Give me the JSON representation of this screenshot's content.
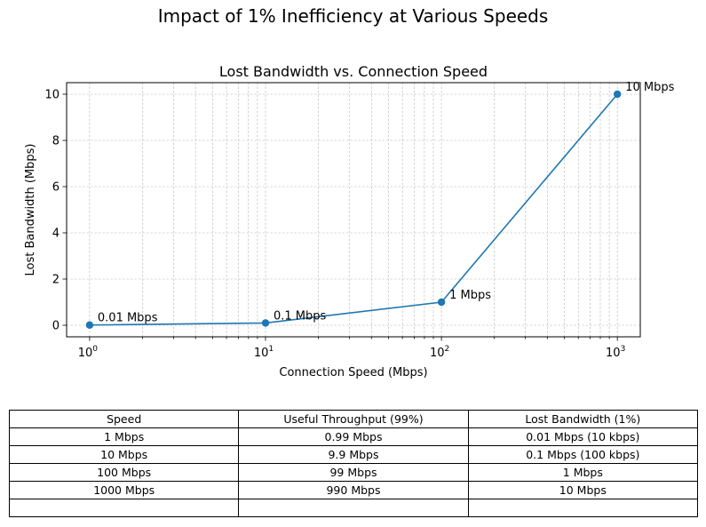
{
  "figure": {
    "suptitle": "Impact of 1% Inefficiency at Various Speeds"
  },
  "chart_data": {
    "type": "line",
    "title": "Lost Bandwidth vs. Connection Speed",
    "xlabel": "Connection Speed (Mbps)",
    "ylabel": "Lost Bandwidth (Mbps)",
    "xscale": "log",
    "xlim": [
      0.74,
      1350
    ],
    "ylim": [
      -0.5,
      10.5
    ],
    "grid": true,
    "x": [
      1,
      10,
      100,
      1000
    ],
    "series": [
      {
        "values": [
          0.01,
          0.1,
          1,
          10
        ],
        "color": "#1f77b4",
        "marker": "circle"
      }
    ],
    "annotations": [
      "0.01 Mbps",
      "0.1 Mbps",
      "1 Mbps",
      "10 Mbps"
    ],
    "x_ticks": [
      {
        "value": 1,
        "base": "10",
        "exp": "0"
      },
      {
        "value": 10,
        "base": "10",
        "exp": "1"
      },
      {
        "value": 100,
        "base": "10",
        "exp": "2"
      },
      {
        "value": 1000,
        "base": "10",
        "exp": "3"
      }
    ],
    "y_ticks": [
      0,
      2,
      4,
      6,
      8,
      10
    ]
  },
  "table": {
    "headers": [
      "Speed",
      "Useful Throughput (99%)",
      "Lost Bandwidth (1%)"
    ],
    "rows": [
      [
        "1 Mbps",
        "0.99 Mbps",
        "0.01 Mbps (10 kbps)"
      ],
      [
        "10 Mbps",
        "9.9 Mbps",
        "0.1 Mbps (100 kbps)"
      ],
      [
        "100 Mbps",
        "99 Mbps",
        "1 Mbps"
      ],
      [
        "1000 Mbps",
        "990 Mbps",
        "10 Mbps"
      ]
    ]
  }
}
